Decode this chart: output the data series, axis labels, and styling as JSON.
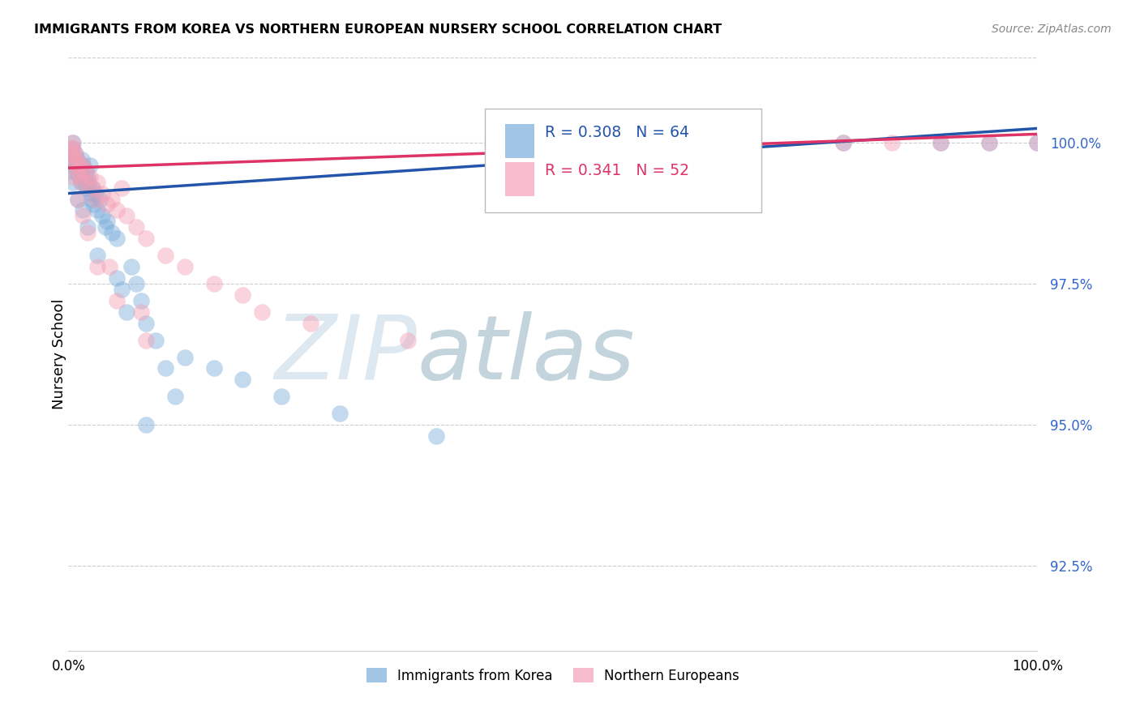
{
  "title": "IMMIGRANTS FROM KOREA VS NORTHERN EUROPEAN NURSERY SCHOOL CORRELATION CHART",
  "source": "Source: ZipAtlas.com",
  "ylabel": "Nursery School",
  "R1": 0.308,
  "N1": 64,
  "R2": 0.341,
  "N2": 52,
  "color_korea": "#7AADDB",
  "color_northern": "#F4A0B5",
  "color_korea_line": "#2255AA",
  "color_northern_line": "#DD3366",
  "xlim": [
    0.0,
    100.0
  ],
  "ylim": [
    91.0,
    101.5
  ],
  "yticks": [
    92.5,
    95.0,
    97.5,
    100.0
  ],
  "ytick_labels": [
    "92.5%",
    "95.0%",
    "97.5%",
    "100.0%"
  ],
  "legend_label1": "Immigrants from Korea",
  "legend_label2": "Northern Europeans",
  "korea_x": [
    0.2,
    0.3,
    0.4,
    0.5,
    0.6,
    0.7,
    0.8,
    0.9,
    1.0,
    1.1,
    1.2,
    1.3,
    1.4,
    1.5,
    1.6,
    1.7,
    1.8,
    1.9,
    2.0,
    2.1,
    2.2,
    2.3,
    2.4,
    2.5,
    2.6,
    2.8,
    3.0,
    3.2,
    3.5,
    3.8,
    4.0,
    4.5,
    5.0,
    5.5,
    6.0,
    6.5,
    7.0,
    7.5,
    8.0,
    9.0,
    10.0,
    11.0,
    12.0,
    15.0,
    18.0,
    22.0,
    28.0,
    38.0,
    55.0,
    60.0,
    65.0,
    68.0,
    80.0,
    90.0,
    95.0,
    100.0,
    0.3,
    0.5,
    1.0,
    1.5,
    2.0,
    3.0,
    5.0,
    8.0
  ],
  "korea_y": [
    99.8,
    99.7,
    99.9,
    100.0,
    99.6,
    99.8,
    99.5,
    99.7,
    99.6,
    99.4,
    99.5,
    99.3,
    99.7,
    99.6,
    99.4,
    99.3,
    99.5,
    99.2,
    99.4,
    99.3,
    99.6,
    99.1,
    99.0,
    99.2,
    98.9,
    99.1,
    98.8,
    99.0,
    98.7,
    98.5,
    98.6,
    98.4,
    98.3,
    97.4,
    97.0,
    97.8,
    97.5,
    97.2,
    96.8,
    96.5,
    96.0,
    95.5,
    96.2,
    96.0,
    95.8,
    95.5,
    95.2,
    94.8,
    100.0,
    100.0,
    100.0,
    100.0,
    100.0,
    100.0,
    100.0,
    100.0,
    99.5,
    99.3,
    99.0,
    98.8,
    98.5,
    98.0,
    97.6,
    95.0
  ],
  "northern_x": [
    0.2,
    0.3,
    0.4,
    0.5,
    0.6,
    0.7,
    0.8,
    0.9,
    1.0,
    1.1,
    1.2,
    1.3,
    1.5,
    1.8,
    2.0,
    2.2,
    2.5,
    2.8,
    3.0,
    3.5,
    4.0,
    4.5,
    5.0,
    5.5,
    6.0,
    7.0,
    8.0,
    10.0,
    12.0,
    15.0,
    18.0,
    20.0,
    25.0,
    35.0,
    4.2,
    7.5,
    55.0,
    60.0,
    65.0,
    70.0,
    80.0,
    85.0,
    90.0,
    95.0,
    100.0,
    0.5,
    1.0,
    1.5,
    2.0,
    3.0,
    5.0,
    8.0
  ],
  "northern_y": [
    99.9,
    99.8,
    100.0,
    99.9,
    99.7,
    99.8,
    99.6,
    99.7,
    99.5,
    99.6,
    99.4,
    99.3,
    99.6,
    99.5,
    99.3,
    99.4,
    99.2,
    99.0,
    99.3,
    99.1,
    98.9,
    99.0,
    98.8,
    99.2,
    98.7,
    98.5,
    98.3,
    98.0,
    97.8,
    97.5,
    97.3,
    97.0,
    96.8,
    96.5,
    97.8,
    97.0,
    100.0,
    100.0,
    100.0,
    100.0,
    100.0,
    100.0,
    100.0,
    100.0,
    100.0,
    99.4,
    99.0,
    98.7,
    98.4,
    97.8,
    97.2,
    96.5
  ],
  "korea_line_x": [
    0,
    100
  ],
  "korea_line_y": [
    99.1,
    100.25
  ],
  "northern_line_x": [
    0,
    100
  ],
  "northern_line_y": [
    99.55,
    100.15
  ]
}
